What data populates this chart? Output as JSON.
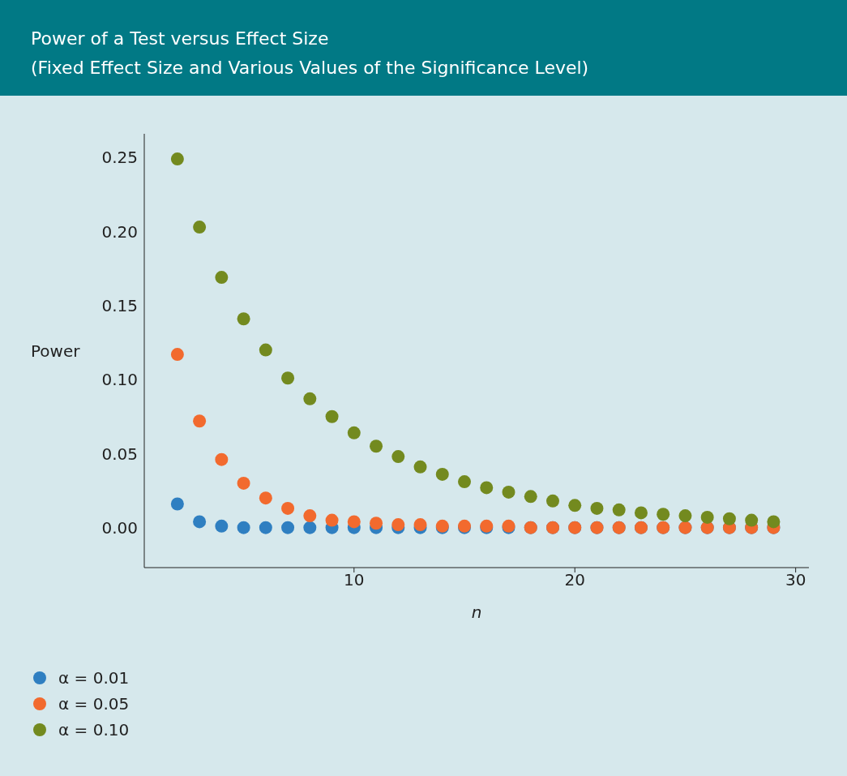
{
  "chart_data": {
    "type": "scatter",
    "title": "Power of a Test versus Effect Size",
    "subtitle": "(Fixed Effect Size and Various Values of the Significance Level)",
    "xlabel": "n",
    "ylabel": "Power",
    "x": [
      2,
      3,
      4,
      5,
      6,
      7,
      8,
      9,
      10,
      11,
      12,
      13,
      14,
      15,
      16,
      17,
      18,
      19,
      20,
      21,
      22,
      23,
      24,
      25,
      26,
      27,
      28,
      29
    ],
    "series": [
      {
        "name": "α = 0.01",
        "color": "#2f7fc1",
        "values": [
          0.016,
          0.004,
          0.001,
          0,
          0,
          0,
          0,
          0,
          0,
          0,
          0,
          0,
          0,
          0,
          0,
          0,
          0,
          0,
          0,
          0,
          0,
          0,
          0,
          0,
          0,
          0,
          0,
          0
        ]
      },
      {
        "name": "α = 0.05",
        "color": "#f26a2e",
        "values": [
          0.117,
          0.072,
          0.046,
          0.03,
          0.02,
          0.013,
          0.008,
          0.005,
          0.004,
          0.003,
          0.002,
          0.002,
          0.001,
          0.001,
          0.001,
          0.001,
          0,
          0,
          0,
          0,
          0,
          0,
          0,
          0,
          0,
          0,
          0,
          0
        ]
      },
      {
        "name": "α = 0.10",
        "color": "#738a1f",
        "values": [
          0.249,
          0.203,
          0.169,
          0.141,
          0.12,
          0.101,
          0.087,
          0.075,
          0.064,
          0.055,
          0.048,
          0.041,
          0.036,
          0.031,
          0.027,
          0.024,
          0.021,
          0.018,
          0.015,
          0.013,
          0.012,
          0.01,
          0.009,
          0.008,
          0.007,
          0.006,
          0.005,
          0.004
        ]
      }
    ],
    "xlim": [
      0.5,
      30.6
    ],
    "xticks": [
      10,
      20,
      30
    ],
    "ylim": [
      -0.027,
      0.266
    ],
    "yticks": [
      {
        "value": 0,
        "label": "0.00"
      },
      {
        "value": 0.05,
        "label": "0.05"
      },
      {
        "value": 0.1,
        "label": "0.10"
      },
      {
        "value": 0.15,
        "label": "0.15"
      },
      {
        "value": 0.2,
        "label": "0.20"
      },
      {
        "value": 0.25,
        "label": "0.25"
      }
    ],
    "marker": "circle",
    "grid": false,
    "legend": "bottom left"
  }
}
